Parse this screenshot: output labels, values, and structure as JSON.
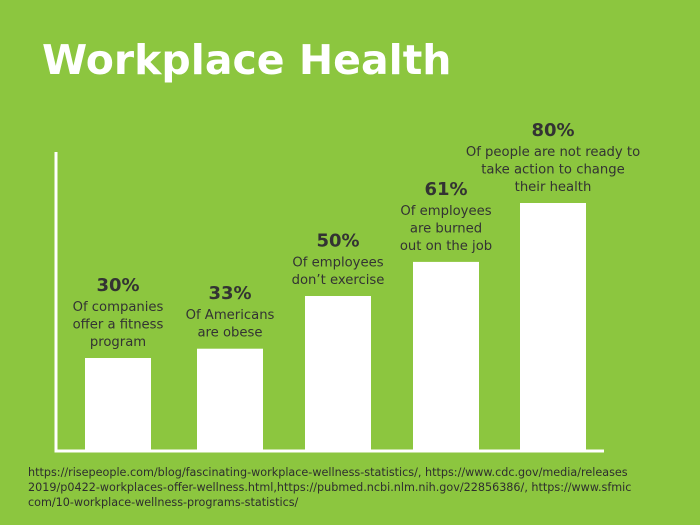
{
  "colors": {
    "background": "#8cc63f",
    "bars": "#ffffff",
    "axes": "#ffffff",
    "value_text": "#333333",
    "label_text": "#333333"
  },
  "title": "Workplace Health",
  "chart_data": {
    "type": "bar",
    "title": "Workplace Health",
    "ylim": [
      0,
      100
    ],
    "grid": false,
    "categories": [
      "Of companies offer a fitness program",
      "Of Americans are obese",
      "Of employees don’t exercise",
      "Of employees are burned out on the job",
      "Of people are not ready to take action to change their health"
    ],
    "values": [
      30,
      33,
      50,
      61,
      80
    ],
    "value_labels": [
      "30%",
      "33%",
      "50%",
      "61%",
      "80%"
    ],
    "label_lines": [
      [
        "Of companies",
        "offer a fitness",
        "program"
      ],
      [
        "Of Americans",
        "are obese"
      ],
      [
        "Of employees",
        "don’t exercise"
      ],
      [
        "Of employees",
        "are burned",
        "out on the job"
      ],
      [
        "Of people are not ready to",
        "take action to change",
        "their health"
      ]
    ]
  },
  "sources": [
    "https://risepeople.com/blog/fascinating-workplace-wellness-statistics/, https://www.cdc.gov/media/releases",
    "2019/p0422-workplaces-offer-wellness.html,https://pubmed.ncbi.nlm.nih.gov/22856386/, https://www.sfmic",
    "com/10-workplace-wellness-programs-statistics/"
  ]
}
